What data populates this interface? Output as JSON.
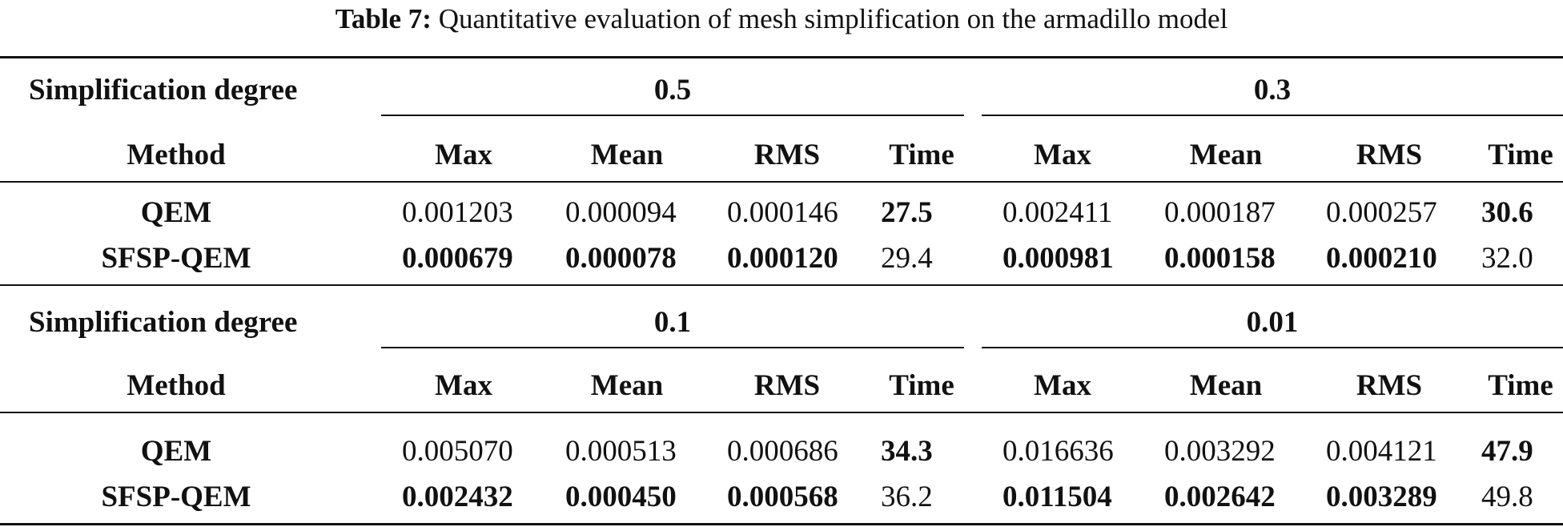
{
  "caption": {
    "label": "Table 7:",
    "text": "Quantitative evaluation of mesh simplification on the armadillo model"
  },
  "table": {
    "blocks": [
      {
        "degree_label": "Simplification degree",
        "method_label": "Method",
        "groups": [
          {
            "degree": "0.5",
            "columns": [
              "Max",
              "Mean",
              "RMS",
              "Time"
            ]
          },
          {
            "degree": "0.3",
            "columns": [
              "Max",
              "Mean",
              "RMS",
              "Time"
            ]
          }
        ],
        "rows": [
          {
            "method": "QEM",
            "values": [
              "0.001203",
              "0.000094",
              "0.000146",
              "27.5",
              "0.002411",
              "0.000187",
              "0.000257",
              "30.6"
            ],
            "bold": [
              false,
              false,
              false,
              true,
              false,
              false,
              false,
              true
            ]
          },
          {
            "method": "SFSP-QEM",
            "values": [
              "0.000679",
              "0.000078",
              "0.000120",
              "29.4",
              "0.000981",
              "0.000158",
              "0.000210",
              "32.0"
            ],
            "bold": [
              true,
              true,
              true,
              false,
              true,
              true,
              true,
              false
            ]
          }
        ]
      },
      {
        "degree_label": "Simplification degree",
        "method_label": "Method",
        "groups": [
          {
            "degree": "0.1",
            "columns": [
              "Max",
              "Mean",
              "RMS",
              "Time"
            ]
          },
          {
            "degree": "0.01",
            "columns": [
              "Max",
              "Mean",
              "RMS",
              "Time"
            ]
          }
        ],
        "rows": [
          {
            "method": "QEM",
            "values": [
              "0.005070",
              "0.000513",
              "0.000686",
              "34.3",
              "0.016636",
              "0.003292",
              "0.004121",
              "47.9"
            ],
            "bold": [
              false,
              false,
              false,
              true,
              false,
              false,
              false,
              true
            ]
          },
          {
            "method": "SFSP-QEM",
            "values": [
              "0.002432",
              "0.000450",
              "0.000568",
              "36.2",
              "0.011504",
              "0.002642",
              "0.003289",
              "49.8"
            ],
            "bold": [
              true,
              true,
              true,
              false,
              true,
              true,
              true,
              false
            ]
          }
        ]
      }
    ]
  }
}
